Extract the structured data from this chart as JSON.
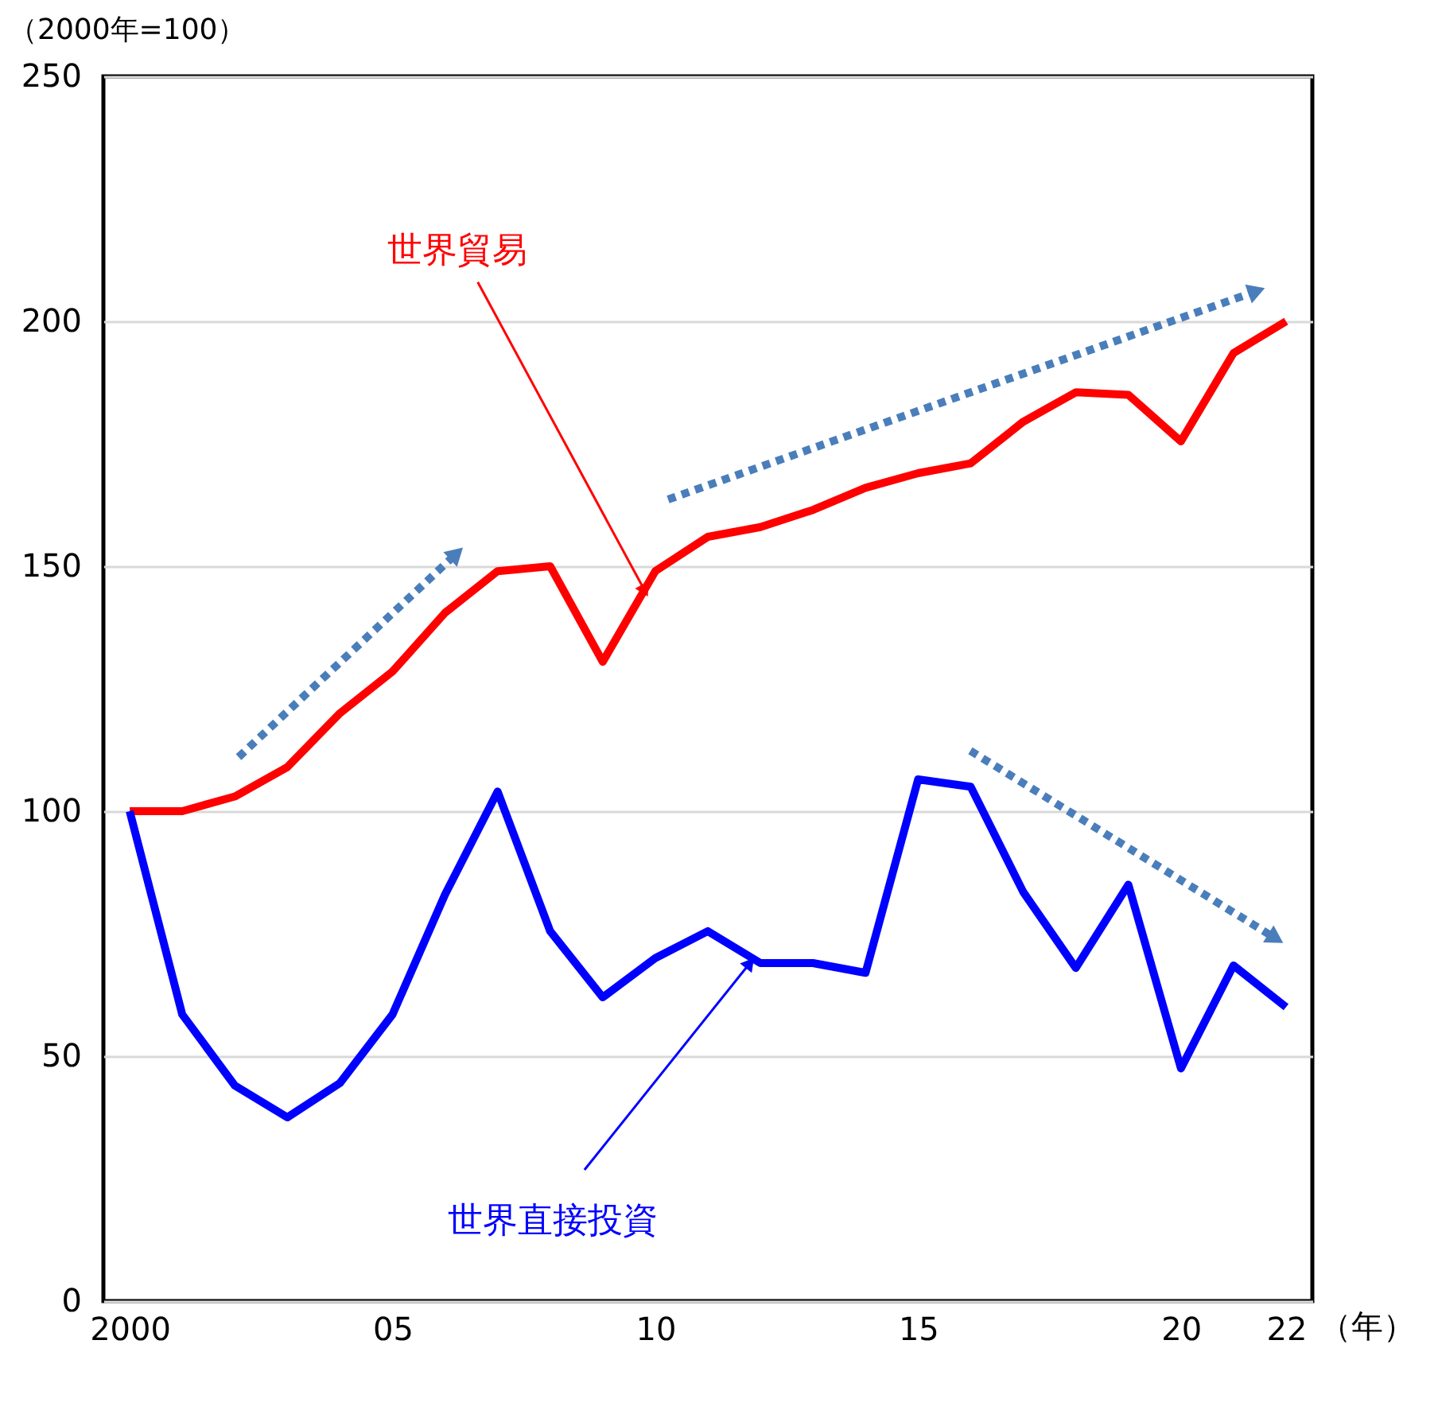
{
  "chart_data": {
    "type": "line",
    "ylabel": "（2000年=100）",
    "xlabel": "（年）",
    "x": [
      2000,
      2001,
      2002,
      2003,
      2004,
      2005,
      2006,
      2007,
      2008,
      2009,
      2010,
      2011,
      2012,
      2013,
      2014,
      2015,
      2016,
      2017,
      2018,
      2019,
      2020,
      2021,
      2022
    ],
    "series": [
      {
        "color": "#ff0000",
        "values": [
          100,
          100,
          103,
          109,
          120,
          128.5,
          140.5,
          149,
          150,
          130.5,
          149,
          156,
          158,
          161.5,
          166,
          169,
          171,
          179.5,
          185.5,
          185,
          175.5,
          193.5,
          200
        ]
      },
      {
        "color": "#0000ff",
        "values": [
          100,
          58.5,
          44,
          37.5,
          44.5,
          58.5,
          83,
          104,
          75.5,
          62,
          70,
          75.5,
          69,
          69,
          67,
          106.5,
          105,
          83.5,
          68,
          85,
          47.5,
          68.5,
          60
        ]
      }
    ],
    "annotations": [
      {
        "text": "世界貿易",
        "x": 2009.8,
        "y": 145
      },
      {
        "text": "世界直接投資",
        "x": 2011.8,
        "y": 69
      }
    ],
    "xlim": [
      1999.5,
      2022.5
    ],
    "ylim": [
      0,
      250
    ],
    "xticks": [
      2000,
      {
        "value": 2005,
        "label": "05"
      },
      {
        "value": 2010,
        "label": "10"
      },
      {
        "value": 2015,
        "label": "15"
      },
      {
        "value": 2020,
        "label": "20"
      },
      {
        "value": 2022,
        "label": "22"
      }
    ],
    "yticks": [
      0,
      50,
      100,
      150,
      200,
      250
    ],
    "grid": "y",
    "marker": "none",
    "line_style": "solid"
  }
}
